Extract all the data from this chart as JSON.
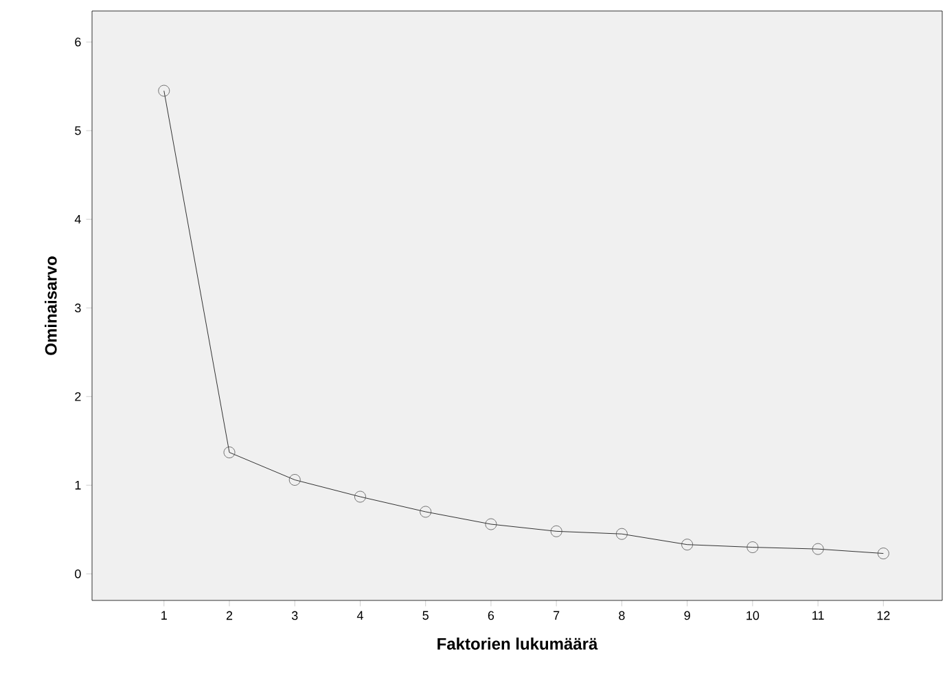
{
  "chart_data": {
    "type": "line",
    "xlabel": "Faktorien lukumäärä",
    "ylabel": "Ominaisarvo",
    "x": [
      1,
      2,
      3,
      4,
      5,
      6,
      7,
      8,
      9,
      10,
      11,
      12
    ],
    "values": [
      5.45,
      1.37,
      1.06,
      0.87,
      0.7,
      0.56,
      0.48,
      0.45,
      0.33,
      0.3,
      0.28,
      0.23
    ],
    "color": "#000000",
    "marker": "circle",
    "line_style": "solid",
    "grid": false,
    "xlim": [
      -0.1,
      12.9
    ],
    "ylim": [
      -0.3,
      6.35
    ],
    "xticks": [
      1,
      2,
      3,
      4,
      5,
      6,
      7,
      8,
      9,
      10,
      11,
      12
    ],
    "yticks": [
      0,
      1,
      2,
      3,
      4,
      5,
      6
    ]
  }
}
